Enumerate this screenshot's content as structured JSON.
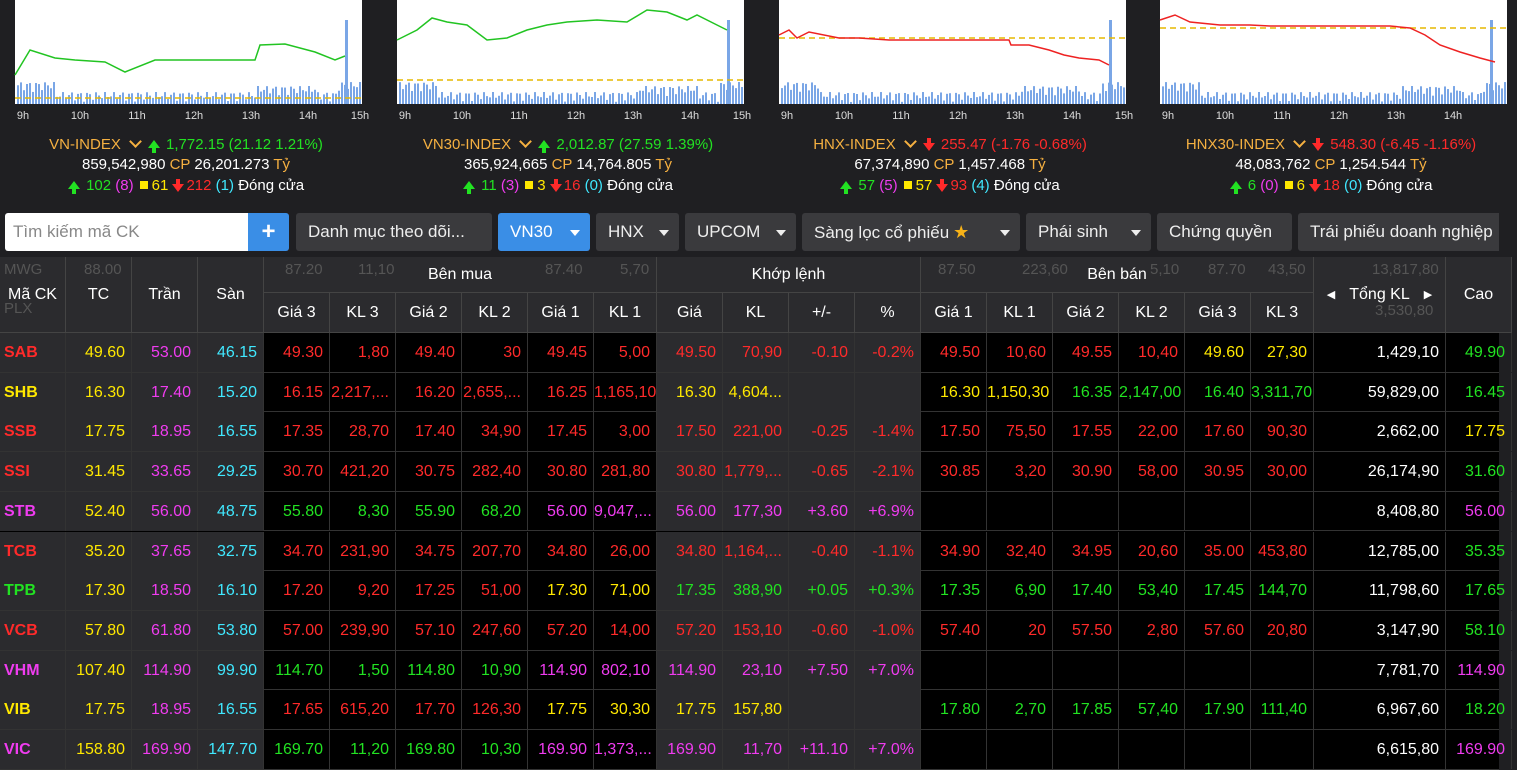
{
  "indices": [
    {
      "name": "VN-INDEX",
      "value": "1,772.15",
      "change": "(21.12 1.21%)",
      "direction": "up",
      "volume": "859,542,980",
      "cp_label": "CP",
      "cp_value": "26,201.273",
      "unit": "Tỷ",
      "advancers": "102",
      "ceiling": "(8)",
      "unchanged": "61",
      "decliners": "212",
      "floor": "(1)",
      "status": "Đóng cửa",
      "ticks": [
        "9h",
        "10h",
        "11h",
        "12h",
        "13h",
        "14h",
        "15h"
      ]
    },
    {
      "name": "VN30-INDEX",
      "value": "2,012.87",
      "change": "(27.59 1.39%)",
      "direction": "up",
      "volume": "365,924,665",
      "cp_label": "CP",
      "cp_value": "14,764.805",
      "unit": "Tỷ",
      "advancers": "11",
      "ceiling": "(3)",
      "unchanged": "3",
      "decliners": "16",
      "floor": "(0)",
      "status": "Đóng cửa",
      "ticks": [
        "9h",
        "10h",
        "11h",
        "12h",
        "13h",
        "14h",
        "15h"
      ]
    },
    {
      "name": "HNX-INDEX",
      "value": "255.47",
      "change": "(-1.76 -0.68%)",
      "direction": "down",
      "volume": "67,374,890",
      "cp_label": "CP",
      "cp_value": "1,457.468",
      "unit": "Tỷ",
      "advancers": "57",
      "ceiling": "(5)",
      "unchanged": "57",
      "decliners": "93",
      "floor": "(4)",
      "status": "Đóng cửa",
      "ticks": [
        "9h",
        "10h",
        "11h",
        "12h",
        "13h",
        "14h",
        "15h"
      ]
    },
    {
      "name": "HNX30-INDEX",
      "value": "548.30",
      "change": "(-6.45 -1.16%)",
      "direction": "down",
      "volume": "48,083,762",
      "cp_label": "CP",
      "cp_value": "1,254.544",
      "unit": "Tỷ",
      "advancers": "6",
      "ceiling": "(0)",
      "unchanged": "6",
      "decliners": "18",
      "floor": "(0)",
      "status": "Đóng cửa",
      "ticks": [
        "9h",
        "10h",
        "11h",
        "12h",
        "13h",
        "14h"
      ]
    }
  ],
  "toolbar": {
    "search_placeholder": "Tìm kiếm mã CK",
    "add_label": "+",
    "watchlist": "Danh mục theo dõi...",
    "vn30": "VN30",
    "hnx": "HNX",
    "upcom": "UPCOM",
    "screener": "Sàng lọc cổ phiếu",
    "derivatives": "Phái sinh",
    "warrants": "Chứng quyền",
    "bonds": "Trái phiếu doanh nghiệp"
  },
  "ghost_row": {
    "r1": [
      "MWG",
      "88.00",
      "87.20",
      "11,10",
      "87.40",
      "5,70",
      "87.50",
      "223,60",
      "5,10",
      "87.70",
      "43,50",
      "13,817,80"
    ],
    "r2": [
      "PLX",
      "3,530,80"
    ]
  },
  "headers": {
    "symbol": "Mã CK",
    "ref": "TC",
    "ceil": "Trần",
    "floor": "Sàn",
    "buy_group": "Bên mua",
    "match_group": "Khớp lệnh",
    "sell_group": "Bên bán",
    "total_vol": "Tổng KL",
    "high": "Cao",
    "buy_cols": [
      "Giá 3",
      "KL 3",
      "Giá 2",
      "KL 2",
      "Giá 1",
      "KL 1"
    ],
    "match_cols": [
      "Giá",
      "KL",
      "+/-",
      "%"
    ],
    "sell_cols": [
      "Giá 1",
      "KL 1",
      "Giá 2",
      "KL 2",
      "Giá 3",
      "KL 3"
    ]
  },
  "colors": {
    "up": "#22e222",
    "down": "#ff2a2a",
    "ref": "#ffe800",
    "ceil": "#f03cf0",
    "floor": "#40e8ff",
    "white": "#ffffff"
  },
  "rows": [
    {
      "sym": "SAB",
      "tc": "49.60",
      "tran": "53.00",
      "san": "46.15",
      "b": [
        [
          "49.30",
          "1,80"
        ],
        [
          "49.40",
          "30"
        ],
        [
          "49.45",
          "5,00"
        ]
      ],
      "m": [
        "49.50",
        "70,90",
        "-0.10",
        "-0.2%"
      ],
      "s": [
        [
          "49.50",
          "10,60"
        ],
        [
          "49.55",
          "10,40"
        ],
        [
          "49.60",
          "27,30"
        ]
      ],
      "total": "1,429,10",
      "high": "49.90",
      "cls": {
        "sym": "down",
        "b": [
          "down",
          "down",
          "down"
        ],
        "m": "down",
        "s": [
          "down",
          "down",
          "ref"
        ],
        "high": "up"
      }
    },
    {
      "sym": "SHB",
      "tc": "16.30",
      "tran": "17.40",
      "san": "15.20",
      "b": [
        [
          "16.15",
          "2,217,..."
        ],
        [
          "16.20",
          "2,655,..."
        ],
        [
          "16.25",
          "1,165,10"
        ]
      ],
      "m": [
        "16.30",
        "4,604...",
        "",
        ""
      ],
      "s": [
        [
          "16.30",
          "1,150,30"
        ],
        [
          "16.35",
          "2,147,00"
        ],
        [
          "16.40",
          "3,311,70"
        ]
      ],
      "total": "59,829,00",
      "high": "16.45",
      "cls": {
        "sym": "ref",
        "b": [
          "down",
          "down",
          "down"
        ],
        "m": "ref",
        "s": [
          "ref",
          "up",
          "up"
        ],
        "high": "up"
      }
    },
    {
      "sym": "SSB",
      "tc": "17.75",
      "tran": "18.95",
      "san": "16.55",
      "b": [
        [
          "17.35",
          "28,70"
        ],
        [
          "17.40",
          "34,90"
        ],
        [
          "17.45",
          "3,00"
        ]
      ],
      "m": [
        "17.50",
        "221,00",
        "-0.25",
        "-1.4%"
      ],
      "s": [
        [
          "17.50",
          "75,50"
        ],
        [
          "17.55",
          "22,00"
        ],
        [
          "17.60",
          "90,30"
        ]
      ],
      "total": "2,662,00",
      "high": "17.75",
      "cls": {
        "sym": "down",
        "b": [
          "down",
          "down",
          "down"
        ],
        "m": "down",
        "s": [
          "down",
          "down",
          "down"
        ],
        "high": "ref"
      }
    },
    {
      "sym": "SSI",
      "tc": "31.45",
      "tran": "33.65",
      "san": "29.25",
      "b": [
        [
          "30.70",
          "421,20"
        ],
        [
          "30.75",
          "282,40"
        ],
        [
          "30.80",
          "281,80"
        ]
      ],
      "m": [
        "30.80",
        "1,779,...",
        "-0.65",
        "-2.1%"
      ],
      "s": [
        [
          "30.85",
          "3,20"
        ],
        [
          "30.90",
          "58,00"
        ],
        [
          "30.95",
          "30,00"
        ]
      ],
      "total": "26,174,90",
      "high": "31.60",
      "cls": {
        "sym": "down",
        "b": [
          "down",
          "down",
          "down"
        ],
        "m": "down",
        "s": [
          "down",
          "down",
          "down"
        ],
        "high": "up"
      }
    },
    {
      "sym": "STB",
      "tc": "52.40",
      "tran": "56.00",
      "san": "48.75",
      "b": [
        [
          "55.80",
          "8,30"
        ],
        [
          "55.90",
          "68,20"
        ],
        [
          "56.00",
          "9,047,..."
        ]
      ],
      "m": [
        "56.00",
        "177,30",
        "+3.60",
        "+6.9%"
      ],
      "s": [
        [
          "",
          ""
        ],
        [
          "",
          ""
        ],
        [
          "",
          ""
        ]
      ],
      "total": "8,408,80",
      "high": "56.00",
      "cls": {
        "sym": "ceil",
        "b": [
          "up",
          "up",
          "ceil"
        ],
        "m": "ceil",
        "s": [
          "up",
          "up",
          "up"
        ],
        "high": "ceil"
      }
    },
    {
      "sym": "TCB",
      "tc": "35.20",
      "tran": "37.65",
      "san": "32.75",
      "b": [
        [
          "34.70",
          "231,90"
        ],
        [
          "34.75",
          "207,70"
        ],
        [
          "34.80",
          "26,00"
        ]
      ],
      "m": [
        "34.80",
        "1,164,...",
        "-0.40",
        "-1.1%"
      ],
      "s": [
        [
          "34.90",
          "32,40"
        ],
        [
          "34.95",
          "20,60"
        ],
        [
          "35.00",
          "453,80"
        ]
      ],
      "total": "12,785,00",
      "high": "35.35",
      "cls": {
        "sym": "down",
        "b": [
          "down",
          "down",
          "down"
        ],
        "m": "down",
        "s": [
          "down",
          "down",
          "down"
        ],
        "high": "up"
      }
    },
    {
      "sym": "TPB",
      "tc": "17.30",
      "tran": "18.50",
      "san": "16.10",
      "b": [
        [
          "17.20",
          "9,20"
        ],
        [
          "17.25",
          "51,00"
        ],
        [
          "17.30",
          "71,00"
        ]
      ],
      "m": [
        "17.35",
        "388,90",
        "+0.05",
        "+0.3%"
      ],
      "s": [
        [
          "17.35",
          "6,90"
        ],
        [
          "17.40",
          "53,40"
        ],
        [
          "17.45",
          "144,70"
        ]
      ],
      "total": "11,798,60",
      "high": "17.65",
      "cls": {
        "sym": "up",
        "b": [
          "down",
          "down",
          "ref"
        ],
        "m": "up",
        "s": [
          "up",
          "up",
          "up"
        ],
        "high": "up"
      }
    },
    {
      "sym": "VCB",
      "tc": "57.80",
      "tran": "61.80",
      "san": "53.80",
      "b": [
        [
          "57.00",
          "239,90"
        ],
        [
          "57.10",
          "247,60"
        ],
        [
          "57.20",
          "14,00"
        ]
      ],
      "m": [
        "57.20",
        "153,10",
        "-0.60",
        "-1.0%"
      ],
      "s": [
        [
          "57.40",
          "20"
        ],
        [
          "57.50",
          "2,80"
        ],
        [
          "57.60",
          "20,80"
        ]
      ],
      "total": "3,147,90",
      "high": "58.10",
      "cls": {
        "sym": "down",
        "b": [
          "down",
          "down",
          "down"
        ],
        "m": "down",
        "s": [
          "down",
          "down",
          "down"
        ],
        "high": "up"
      }
    },
    {
      "sym": "VHM",
      "tc": "107.40",
      "tran": "114.90",
      "san": "99.90",
      "b": [
        [
          "114.70",
          "1,50"
        ],
        [
          "114.80",
          "10,90"
        ],
        [
          "114.90",
          "802,10"
        ]
      ],
      "m": [
        "114.90",
        "23,10",
        "+7.50",
        "+7.0%"
      ],
      "s": [
        [
          "",
          ""
        ],
        [
          "",
          ""
        ],
        [
          "",
          ""
        ]
      ],
      "total": "7,781,70",
      "high": "114.90",
      "cls": {
        "sym": "ceil",
        "b": [
          "up",
          "up",
          "ceil"
        ],
        "m": "ceil",
        "s": [
          "up",
          "up",
          "up"
        ],
        "high": "ceil"
      }
    },
    {
      "sym": "VIB",
      "tc": "17.75",
      "tran": "18.95",
      "san": "16.55",
      "b": [
        [
          "17.65",
          "615,20"
        ],
        [
          "17.70",
          "126,30"
        ],
        [
          "17.75",
          "30,30"
        ]
      ],
      "m": [
        "17.75",
        "157,80",
        "",
        ""
      ],
      "s": [
        [
          "17.80",
          "2,70"
        ],
        [
          "17.85",
          "57,40"
        ],
        [
          "17.90",
          "111,40"
        ]
      ],
      "total": "6,967,60",
      "high": "18.20",
      "cls": {
        "sym": "ref",
        "b": [
          "down",
          "down",
          "ref"
        ],
        "m": "ref",
        "s": [
          "up",
          "up",
          "up"
        ],
        "high": "up"
      }
    },
    {
      "sym": "VIC",
      "tc": "158.80",
      "tran": "169.90",
      "san": "147.70",
      "b": [
        [
          "169.70",
          "11,20"
        ],
        [
          "169.80",
          "10,30"
        ],
        [
          "169.90",
          "1,373,..."
        ]
      ],
      "m": [
        "169.90",
        "11,70",
        "+11.10",
        "+7.0%"
      ],
      "s": [
        [
          "",
          ""
        ],
        [
          "",
          ""
        ],
        [
          "",
          ""
        ]
      ],
      "total": "6,615,80",
      "high": "169.90",
      "cls": {
        "sym": "ceil",
        "b": [
          "up",
          "up",
          "ceil"
        ],
        "m": "ceil",
        "s": [
          "up",
          "up",
          "up"
        ],
        "high": "ceil"
      }
    }
  ]
}
